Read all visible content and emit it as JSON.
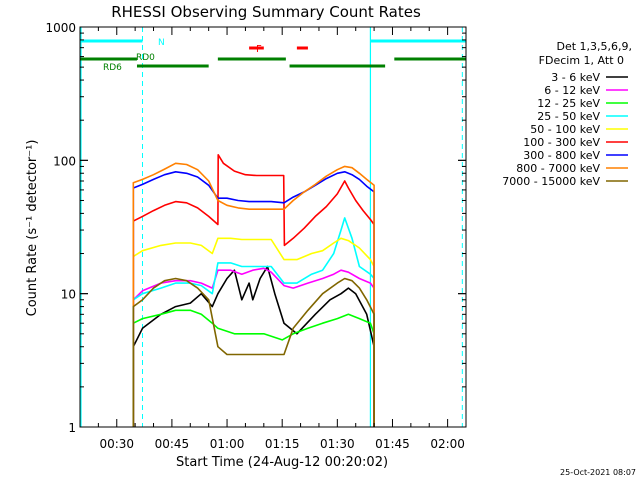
{
  "chart_data": {
    "type": "line",
    "title": "RHESSI Observing Summary Count Rates",
    "xlabel": "Start Time (24-Aug-12 00:20:02)",
    "ylabel": "Count Rate (s⁻¹ detector⁻¹)",
    "ylog": true,
    "ylim": [
      1,
      1000
    ],
    "xlim_minutes": [
      20,
      125
    ],
    "x_ticks": [
      {
        "min": 30,
        "label": "00:30"
      },
      {
        "min": 45,
        "label": "00:45"
      },
      {
        "min": 60,
        "label": "01:00"
      },
      {
        "min": 75,
        "label": "01:15"
      },
      {
        "min": 90,
        "label": "01:30"
      },
      {
        "min": 105,
        "label": "01:45"
      },
      {
        "min": 120,
        "label": "02:00"
      }
    ],
    "y_ticks": [
      {
        "value": 1,
        "label": "1"
      },
      {
        "value": 10,
        "label": "10"
      },
      {
        "value": 100,
        "label": "100"
      },
      {
        "value": 1000,
        "label": "1000"
      }
    ],
    "legend": {
      "position": "right",
      "header": [
        "Det 1,3,5,6,9,",
        "FDecim 1, Att 0"
      ]
    },
    "series": [
      {
        "name": "3 - 6 keV",
        "color": "#000000",
        "points": [
          [
            34.5,
            4
          ],
          [
            37,
            5.5
          ],
          [
            42,
            7
          ],
          [
            46,
            8
          ],
          [
            50,
            8.5
          ],
          [
            53,
            10
          ],
          [
            56,
            8
          ],
          [
            57.5,
            10
          ],
          [
            60,
            13
          ],
          [
            62,
            15
          ],
          [
            64,
            9
          ],
          [
            66,
            12
          ],
          [
            67,
            9
          ],
          [
            69,
            13
          ],
          [
            71,
            16
          ],
          [
            73,
            10
          ],
          [
            75.5,
            6
          ],
          [
            79,
            5
          ],
          [
            84,
            7
          ],
          [
            88,
            9
          ],
          [
            91,
            10
          ],
          [
            93,
            11
          ],
          [
            95,
            10
          ],
          [
            98,
            7
          ],
          [
            100,
            4
          ]
        ]
      },
      {
        "name": "6 - 12 keV",
        "color": "#ff00ff",
        "points": [
          [
            34.5,
            9
          ],
          [
            37,
            10.5
          ],
          [
            42,
            12
          ],
          [
            46,
            12.5
          ],
          [
            50,
            12.5
          ],
          [
            53,
            12
          ],
          [
            56,
            11
          ],
          [
            57.5,
            15
          ],
          [
            61,
            15
          ],
          [
            64,
            14
          ],
          [
            67,
            15
          ],
          [
            70,
            15.5
          ],
          [
            72,
            14.5
          ],
          [
            75.5,
            11.5
          ],
          [
            78,
            11
          ],
          [
            82,
            12
          ],
          [
            86,
            13
          ],
          [
            89,
            14
          ],
          [
            91,
            15
          ],
          [
            93,
            14.5
          ],
          [
            96,
            13
          ],
          [
            99,
            12
          ],
          [
            100,
            11
          ]
        ]
      },
      {
        "name": "12 - 25 keV",
        "color": "#00ff00",
        "points": [
          [
            34.5,
            6
          ],
          [
            37,
            6.5
          ],
          [
            42,
            7
          ],
          [
            46,
            7.5
          ],
          [
            50,
            7.5
          ],
          [
            53,
            7
          ],
          [
            56,
            6
          ],
          [
            57.5,
            5.5
          ],
          [
            62,
            5
          ],
          [
            66,
            5
          ],
          [
            70,
            5
          ],
          [
            75,
            4.5
          ],
          [
            78,
            5
          ],
          [
            82,
            5.5
          ],
          [
            86,
            6
          ],
          [
            90,
            6.5
          ],
          [
            93,
            7
          ],
          [
            96,
            6.5
          ],
          [
            99,
            6
          ],
          [
            100,
            5
          ]
        ]
      },
      {
        "name": "25 - 50 keV",
        "color": "#00ffff",
        "points": [
          [
            34.5,
            9
          ],
          [
            37,
            10
          ],
          [
            42,
            11
          ],
          [
            46,
            12
          ],
          [
            50,
            12
          ],
          [
            53,
            11.5
          ],
          [
            56,
            10
          ],
          [
            57.5,
            17
          ],
          [
            61,
            17
          ],
          [
            64,
            16
          ],
          [
            68,
            16
          ],
          [
            72,
            16
          ],
          [
            75.5,
            12
          ],
          [
            79,
            12
          ],
          [
            83,
            14
          ],
          [
            86,
            15
          ],
          [
            89,
            20
          ],
          [
            91,
            30
          ],
          [
            92,
            37
          ],
          [
            94,
            26
          ],
          [
            96,
            16
          ],
          [
            99,
            14
          ],
          [
            100,
            13
          ]
        ]
      },
      {
        "name": "50 - 100 keV",
        "color": "#ffff00",
        "points": [
          [
            34.5,
            19
          ],
          [
            37,
            21
          ],
          [
            42,
            23
          ],
          [
            46,
            24
          ],
          [
            50,
            24
          ],
          [
            53,
            23
          ],
          [
            56,
            20
          ],
          [
            57.5,
            26
          ],
          [
            61,
            26
          ],
          [
            64,
            25.5
          ],
          [
            68,
            25.5
          ],
          [
            72,
            25.5
          ],
          [
            75.5,
            18
          ],
          [
            79,
            18
          ],
          [
            83,
            20
          ],
          [
            86,
            21
          ],
          [
            89,
            24
          ],
          [
            91,
            26
          ],
          [
            93,
            25
          ],
          [
            96,
            22
          ],
          [
            99,
            18
          ],
          [
            100,
            16
          ]
        ]
      },
      {
        "name": "100 - 300 keV",
        "color": "#ff0000",
        "points": [
          [
            34.5,
            35
          ],
          [
            37,
            38
          ],
          [
            40,
            42
          ],
          [
            43,
            46
          ],
          [
            46,
            49
          ],
          [
            49,
            48
          ],
          [
            52,
            44
          ],
          [
            55,
            38
          ],
          [
            57.5,
            33
          ],
          [
            57.6,
            110
          ],
          [
            59,
            95
          ],
          [
            62,
            83
          ],
          [
            65,
            78
          ],
          [
            68,
            77
          ],
          [
            72,
            77
          ],
          [
            75.4,
            77
          ],
          [
            75.6,
            23
          ],
          [
            78,
            26
          ],
          [
            81,
            31
          ],
          [
            84,
            38
          ],
          [
            87,
            45
          ],
          [
            90,
            56
          ],
          [
            92,
            70
          ],
          [
            93,
            62
          ],
          [
            95,
            50
          ],
          [
            97,
            42
          ],
          [
            99,
            36
          ],
          [
            100,
            33
          ]
        ]
      },
      {
        "name": "300 - 800 keV",
        "color": "#0000ff",
        "points": [
          [
            34.5,
            62
          ],
          [
            37,
            66
          ],
          [
            40,
            72
          ],
          [
            43,
            78
          ],
          [
            46,
            82
          ],
          [
            49,
            80
          ],
          [
            52,
            75
          ],
          [
            55,
            65
          ],
          [
            57.5,
            52
          ],
          [
            60,
            52
          ],
          [
            63,
            50
          ],
          [
            66,
            49
          ],
          [
            69,
            49
          ],
          [
            72,
            49
          ],
          [
            75.5,
            48
          ],
          [
            78,
            53
          ],
          [
            81,
            58
          ],
          [
            84,
            65
          ],
          [
            87,
            73
          ],
          [
            90,
            80
          ],
          [
            92,
            82
          ],
          [
            94,
            78
          ],
          [
            96,
            72
          ],
          [
            98,
            64
          ],
          [
            100,
            58
          ]
        ]
      },
      {
        "name": "800 - 7000 keV",
        "color": "#ff8000",
        "points": [
          [
            34.5,
            68
          ],
          [
            37,
            72
          ],
          [
            40,
            78
          ],
          [
            43,
            86
          ],
          [
            46,
            95
          ],
          [
            49,
            93
          ],
          [
            52,
            85
          ],
          [
            55,
            70
          ],
          [
            57.5,
            50
          ],
          [
            60,
            46
          ],
          [
            63,
            44
          ],
          [
            66,
            43
          ],
          [
            69,
            43
          ],
          [
            72,
            43
          ],
          [
            75.5,
            43
          ],
          [
            78,
            50
          ],
          [
            81,
            58
          ],
          [
            84,
            66
          ],
          [
            87,
            76
          ],
          [
            90,
            85
          ],
          [
            92,
            90
          ],
          [
            94,
            88
          ],
          [
            96,
            80
          ],
          [
            98,
            72
          ],
          [
            100,
            65
          ]
        ]
      },
      {
        "name": "7000 - 15000 keV",
        "color": "#806600",
        "points": [
          [
            34.5,
            8
          ],
          [
            37,
            9
          ],
          [
            40,
            11
          ],
          [
            43,
            12.5
          ],
          [
            46,
            13
          ],
          [
            49,
            12.5
          ],
          [
            52,
            11
          ],
          [
            55,
            9
          ],
          [
            57.5,
            4
          ],
          [
            60,
            3.5
          ],
          [
            64,
            3.5
          ],
          [
            68,
            3.5
          ],
          [
            72,
            3.5
          ],
          [
            75.5,
            3.5
          ],
          [
            78,
            5.5
          ],
          [
            82,
            7.5
          ],
          [
            86,
            10
          ],
          [
            90,
            12
          ],
          [
            92,
            13
          ],
          [
            94,
            12.5
          ],
          [
            96,
            11
          ],
          [
            98,
            9
          ],
          [
            100,
            7
          ]
        ]
      }
    ],
    "annotations": {
      "N": "N",
      "F": "F",
      "RD0": "RD0",
      "RD6": "RD6"
    },
    "markers": {
      "night_color": "#00ffff",
      "flare_color": "#ff0000",
      "decim_color": "#008000",
      "night_bars_min": [
        [
          20,
          37
        ],
        [
          99,
          125
        ]
      ],
      "night_dashed_min": [
        37,
        124
      ],
      "night_solid_min": [
        99
      ],
      "flare_bars_min": [
        [
          66,
          70
        ],
        [
          79,
          82
        ]
      ],
      "rd0_bar_min": [
        [
          20,
          35.5
        ]
      ],
      "rd6_bars_min": [
        [
          35.5,
          55
        ],
        [
          57.5,
          76
        ],
        [
          77,
          103
        ],
        [
          105.5,
          125
        ]
      ]
    }
  },
  "footer_timestamp": "25-Oct-2021 08:07"
}
